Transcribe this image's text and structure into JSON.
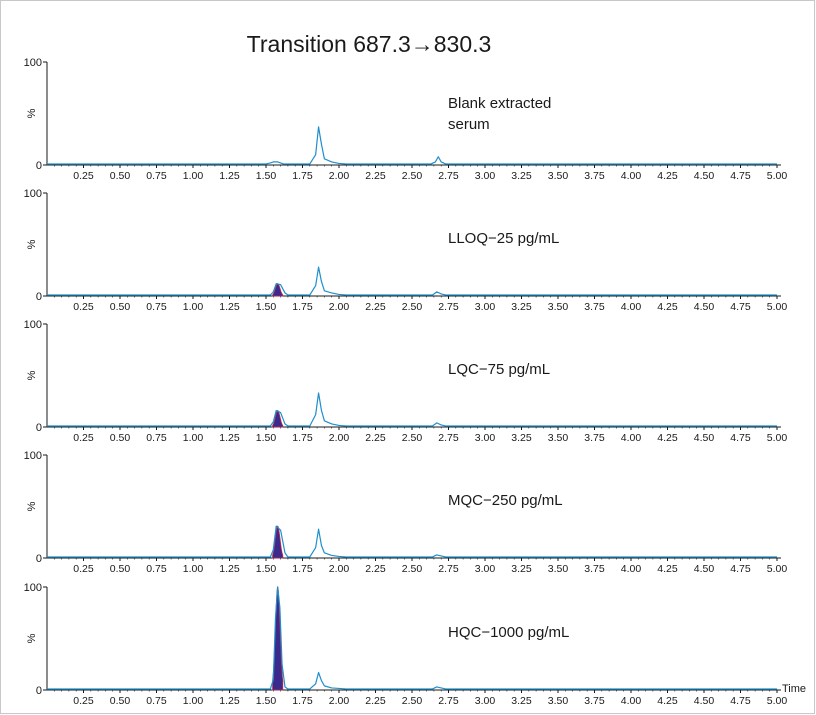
{
  "title": "Transition 687.3→830.3",
  "x_axis_label": "Time",
  "colors": {
    "trace": "#1f8fcc",
    "analyte_fill": "#3b2a8c",
    "analyte_edge": "#c0294f",
    "axis": "#1a1a1a"
  },
  "chart_data": [
    {
      "type": "line",
      "sample_label_lines": [
        "Blank extracted",
        "serum"
      ],
      "y_axis_label": "%",
      "ylim": [
        0,
        100
      ],
      "y_ticks": [
        "0",
        "100"
      ],
      "xlim": [
        0,
        5.0
      ],
      "x_ticks": [
        "0.25",
        "0.50",
        "0.75",
        "1.00",
        "1.25",
        "1.50",
        "1.75",
        "2.00",
        "2.25",
        "2.50",
        "2.75",
        "3.00",
        "3.25",
        "3.50",
        "3.75",
        "4.00",
        "4.25",
        "4.50",
        "4.75",
        "5.00"
      ],
      "series": [
        {
          "name": "",
          "x": [
            0,
            0.5,
            1.0,
            1.5,
            1.53,
            1.55,
            1.58,
            1.62,
            1.8,
            1.84,
            1.86,
            1.88,
            1.9,
            1.95,
            2.0,
            2.05,
            2.5,
            2.63,
            2.66,
            2.68,
            2.7,
            2.73,
            3.0,
            3.5,
            4.0,
            4.5,
            5.0
          ],
          "y": [
            1,
            1,
            1,
            1,
            2,
            3,
            3,
            1,
            1,
            10,
            37,
            20,
            6,
            3,
            1.5,
            1,
            1,
            1,
            3,
            8,
            3,
            1,
            1,
            1,
            1,
            1,
            1
          ]
        }
      ],
      "analyte_peak": null
    },
    {
      "type": "line",
      "sample_label_lines": [
        "LLOQ−25 pg/mL"
      ],
      "y_axis_label": "%",
      "ylim": [
        0,
        100
      ],
      "y_ticks": [
        "0",
        "100"
      ],
      "xlim": [
        0,
        5.0
      ],
      "x_ticks": [
        "0.25",
        "0.50",
        "0.75",
        "1.00",
        "1.25",
        "1.50",
        "1.75",
        "2.00",
        "2.25",
        "2.50",
        "2.75",
        "3.00",
        "3.25",
        "3.50",
        "3.75",
        "4.00",
        "4.25",
        "4.50",
        "4.75",
        "5.00"
      ],
      "series": [
        {
          "name": "",
          "x": [
            0,
            0.5,
            1.0,
            1.5,
            1.53,
            1.55,
            1.57,
            1.6,
            1.63,
            1.65,
            1.8,
            1.84,
            1.86,
            1.88,
            1.9,
            1.95,
            2.0,
            2.05,
            2.5,
            2.64,
            2.67,
            2.7,
            2.73,
            3.0,
            3.5,
            4.0,
            4.5,
            5.0
          ],
          "y": [
            1,
            1,
            1,
            1,
            1,
            4,
            12,
            11,
            3,
            1,
            1,
            10,
            28,
            14,
            5,
            3,
            1.5,
            1,
            1,
            1,
            4,
            2,
            1,
            1,
            1,
            1,
            1,
            1
          ]
        }
      ],
      "analyte_peak": {
        "center": 1.58,
        "height": 12,
        "width": 0.035
      }
    },
    {
      "type": "line",
      "sample_label_lines": [
        "LQC−75 pg/mL"
      ],
      "y_axis_label": "%",
      "ylim": [
        0,
        100
      ],
      "y_ticks": [
        "0",
        "100"
      ],
      "xlim": [
        0,
        5.0
      ],
      "x_ticks": [
        "0.25",
        "0.50",
        "0.75",
        "1.00",
        "1.25",
        "1.50",
        "1.75",
        "2.00",
        "2.25",
        "2.50",
        "2.75",
        "3.00",
        "3.25",
        "3.50",
        "3.75",
        "4.00",
        "4.25",
        "4.50",
        "4.75",
        "5.00"
      ],
      "series": [
        {
          "name": "",
          "x": [
            0,
            0.5,
            1.0,
            1.5,
            1.53,
            1.55,
            1.57,
            1.6,
            1.63,
            1.65,
            1.8,
            1.84,
            1.86,
            1.88,
            1.9,
            1.95,
            2.0,
            2.05,
            2.5,
            2.64,
            2.67,
            2.7,
            2.73,
            3.0,
            3.5,
            4.0,
            4.5,
            5.0
          ],
          "y": [
            1,
            1,
            1,
            1,
            1,
            5,
            16,
            14,
            3,
            1,
            1,
            12,
            33,
            16,
            6,
            3,
            1.5,
            1,
            1,
            1,
            4,
            2,
            1,
            1,
            1,
            1,
            1,
            1
          ]
        }
      ],
      "analyte_peak": {
        "center": 1.58,
        "height": 16,
        "width": 0.035
      }
    },
    {
      "type": "line",
      "sample_label_lines": [
        "MQC−250 pg/mL"
      ],
      "y_axis_label": "%",
      "ylim": [
        0,
        100
      ],
      "y_ticks": [
        "0",
        "100"
      ],
      "xlim": [
        0,
        5.0
      ],
      "x_ticks": [
        "0.25",
        "0.50",
        "0.75",
        "1.00",
        "1.25",
        "1.50",
        "1.75",
        "2.00",
        "2.25",
        "2.50",
        "2.75",
        "3.00",
        "3.25",
        "3.50",
        "3.75",
        "4.00",
        "4.25",
        "4.50",
        "4.75",
        "5.00"
      ],
      "series": [
        {
          "name": "",
          "x": [
            0,
            0.5,
            1.0,
            1.5,
            1.53,
            1.55,
            1.57,
            1.6,
            1.63,
            1.65,
            1.8,
            1.84,
            1.86,
            1.88,
            1.9,
            1.95,
            2.0,
            2.05,
            2.5,
            2.64,
            2.67,
            2.7,
            2.73,
            3.0,
            3.5,
            4.0,
            4.5,
            5.0
          ],
          "y": [
            1,
            1,
            1,
            1,
            1,
            8,
            31,
            27,
            5,
            1,
            1,
            10,
            28,
            12,
            5,
            2.5,
            1.5,
            1,
            1,
            1,
            3,
            2,
            1,
            1,
            1,
            1,
            1,
            1
          ]
        }
      ],
      "analyte_peak": {
        "center": 1.58,
        "height": 31,
        "width": 0.035
      }
    },
    {
      "type": "line",
      "sample_label_lines": [
        "HQC−1000 pg/mL"
      ],
      "y_axis_label": "%",
      "ylim": [
        0,
        100
      ],
      "y_ticks": [
        "0",
        "100"
      ],
      "xlim": [
        0,
        5.0
      ],
      "x_ticks": [
        "0.25",
        "0.50",
        "0.75",
        "1.00",
        "1.25",
        "1.50",
        "1.75",
        "2.00",
        "2.25",
        "2.50",
        "2.75",
        "3.00",
        "3.25",
        "3.50",
        "3.75",
        "4.00",
        "4.25",
        "4.50",
        "4.75",
        "5.00"
      ],
      "series": [
        {
          "name": "",
          "x": [
            0,
            0.5,
            1.0,
            1.5,
            1.53,
            1.55,
            1.565,
            1.58,
            1.595,
            1.61,
            1.63,
            1.65,
            1.8,
            1.84,
            1.86,
            1.88,
            1.9,
            1.95,
            2.0,
            2.05,
            2.5,
            2.64,
            2.67,
            2.7,
            2.73,
            3.0,
            3.5,
            4.0,
            4.5,
            5.0
          ],
          "y": [
            1,
            1,
            1,
            1,
            1,
            10,
            70,
            100,
            80,
            25,
            3,
            1,
            1,
            6,
            17,
            9,
            4,
            2,
            1.5,
            1,
            1,
            1,
            3,
            2,
            1,
            1,
            1,
            1,
            1,
            1
          ]
        }
      ],
      "analyte_peak": {
        "center": 1.58,
        "height": 100,
        "width": 0.035
      }
    }
  ]
}
